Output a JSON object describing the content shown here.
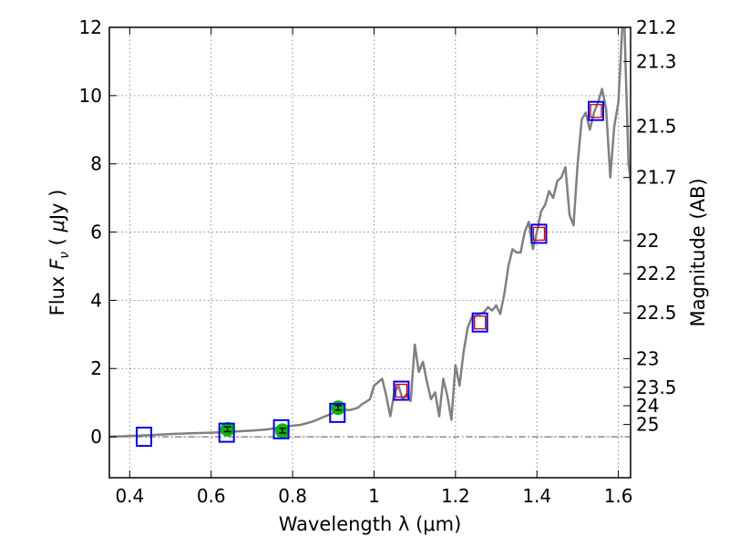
{
  "chart_data": {
    "type": "line",
    "xlabel": "Wavelength  λ (μm)",
    "ylabel_parts": [
      "Flux ",
      "F",
      "ν",
      " ( ",
      "μ",
      "Jy )"
    ],
    "y2label": "Magnitude (AB)",
    "xlim": [
      0.35,
      1.63
    ],
    "ylim": [
      -1.2,
      12
    ],
    "xticks": [
      0.4,
      0.6,
      0.8,
      1.0,
      1.2,
      1.4,
      1.6
    ],
    "xtick_labels": [
      "0.4",
      "0.6",
      "0.8",
      "1",
      "1.2",
      "1.4",
      "1.6"
    ],
    "yticks": [
      0,
      2,
      4,
      6,
      8,
      10,
      12
    ],
    "ytick_labels": [
      "0",
      "2",
      "4",
      "6",
      "8",
      "10",
      "12"
    ],
    "magnitude_ticks": [
      {
        "label": "21.2",
        "flux": 12.0
      },
      {
        "label": "21.3",
        "flux": 11.0
      },
      {
        "label": "21.5",
        "flux": 9.1
      },
      {
        "label": "21.7",
        "flux": 7.6
      },
      {
        "label": "22",
        "flux": 5.75
      },
      {
        "label": "22.2",
        "flux": 4.78
      },
      {
        "label": "22.5",
        "flux": 3.63
      },
      {
        "label": "23",
        "flux": 2.29
      },
      {
        "label": "23.5",
        "flux": 1.45
      },
      {
        "label": "24",
        "flux": 0.91
      },
      {
        "label": "25",
        "flux": 0.36
      }
    ],
    "grid": true,
    "zero_line": {
      "y": 0,
      "color": "#555555"
    },
    "series": [
      {
        "kind": "spectrum",
        "color": "#808080",
        "x": [
          0.35,
          0.4,
          0.45,
          0.5,
          0.55,
          0.6,
          0.65,
          0.7,
          0.74,
          0.78,
          0.82,
          0.85,
          0.87,
          0.89,
          0.91,
          0.92,
          0.94,
          0.96,
          0.97,
          0.99,
          1.0,
          1.02,
          1.03,
          1.04,
          1.05,
          1.06,
          1.07,
          1.08,
          1.09,
          1.1,
          1.11,
          1.12,
          1.13,
          1.14,
          1.15,
          1.16,
          1.17,
          1.18,
          1.19,
          1.2,
          1.21,
          1.22,
          1.23,
          1.24,
          1.25,
          1.26,
          1.27,
          1.28,
          1.29,
          1.3,
          1.31,
          1.32,
          1.33,
          1.34,
          1.35,
          1.36,
          1.37,
          1.38,
          1.39,
          1.4,
          1.41,
          1.42,
          1.43,
          1.44,
          1.45,
          1.46,
          1.47,
          1.48,
          1.49,
          1.5,
          1.51,
          1.52,
          1.53,
          1.54,
          1.55,
          1.56,
          1.57,
          1.58,
          1.59,
          1.6,
          1.61,
          1.615,
          1.62,
          1.625,
          1.63
        ],
        "y": [
          0.0,
          0.02,
          0.05,
          0.08,
          0.1,
          0.12,
          0.15,
          0.18,
          0.22,
          0.3,
          0.35,
          0.45,
          0.55,
          0.65,
          0.75,
          0.8,
          0.78,
          0.85,
          0.95,
          1.1,
          1.5,
          1.7,
          1.2,
          0.6,
          1.3,
          1.5,
          1.1,
          1.25,
          1.05,
          2.7,
          1.9,
          2.2,
          1.6,
          1.1,
          1.3,
          0.6,
          1.7,
          1.2,
          0.5,
          2.1,
          1.5,
          2.5,
          3.2,
          3.5,
          3.55,
          3.6,
          3.65,
          3.8,
          3.7,
          3.85,
          3.6,
          4.2,
          5.0,
          5.5,
          5.4,
          5.4,
          6.0,
          6.3,
          5.5,
          6.0,
          6.6,
          6.8,
          7.2,
          7.0,
          7.5,
          7.6,
          7.9,
          6.5,
          6.2,
          8.0,
          9.3,
          9.5,
          9.0,
          9.5,
          9.8,
          10.2,
          9.6,
          7.6,
          9.1,
          9.8,
          12.1,
          12.0,
          10.0,
          8.0,
          7.5
        ]
      },
      {
        "kind": "points",
        "name": "",
        "marker": "circle",
        "color": "#00bb00",
        "x": [
          0.64,
          0.775,
          0.912
        ],
        "y": [
          0.22,
          0.18,
          0.85
        ],
        "yerr": [
          0.07,
          0.07,
          0.07
        ]
      },
      {
        "kind": "points",
        "marker": "square",
        "edge_color": "#0000ff",
        "x": [
          0.435,
          0.638,
          0.772,
          0.91,
          1.067,
          1.26,
          1.405,
          1.545
        ],
        "y": [
          0.0,
          0.12,
          0.22,
          0.7,
          1.35,
          3.35,
          5.95,
          9.55
        ]
      },
      {
        "kind": "points",
        "marker": "square-small",
        "edge_color": "#cc0000",
        "x": [
          1.067,
          1.26,
          1.405,
          1.545
        ],
        "y": [
          1.35,
          3.35,
          5.95,
          9.55
        ]
      }
    ]
  }
}
